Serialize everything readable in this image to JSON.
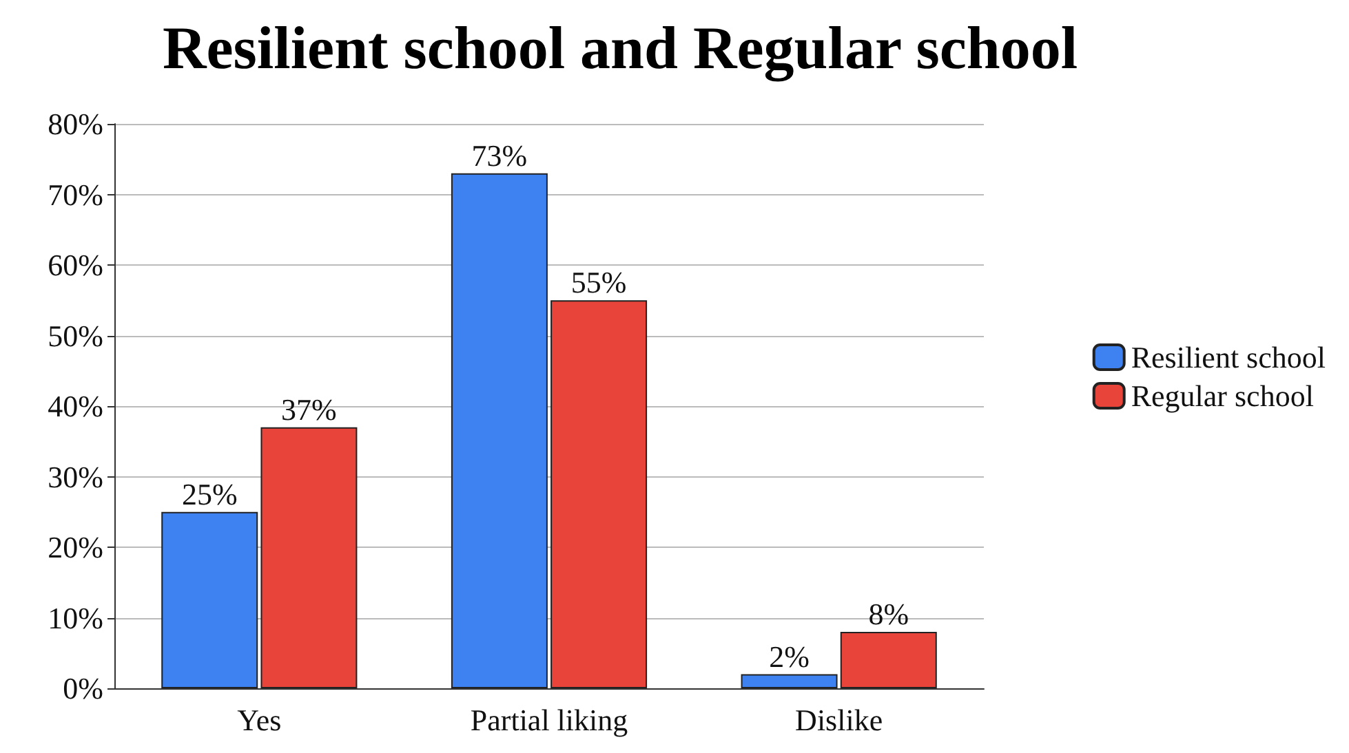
{
  "chart_data": {
    "type": "bar",
    "title": "Resilient school and Regular school",
    "categories": [
      "Yes",
      "Partial liking",
      "Dislike"
    ],
    "series": [
      {
        "name": "Resilient school",
        "color": "#3d82f0",
        "values": [
          25,
          73,
          2
        ],
        "value_labels": [
          "25%",
          "73%",
          "2%"
        ]
      },
      {
        "name": "Regular school",
        "color": "#e8443a",
        "values": [
          37,
          55,
          8
        ],
        "value_labels": [
          "37%",
          "55%",
          "8%"
        ]
      }
    ],
    "ylim": [
      0,
      80
    ],
    "yticks": [
      {
        "value": 0,
        "label": "0%"
      },
      {
        "value": 10,
        "label": "10%"
      },
      {
        "value": 20,
        "label": "20%"
      },
      {
        "value": 30,
        "label": "30%"
      },
      {
        "value": 40,
        "label": "40%"
      },
      {
        "value": 50,
        "label": "50%"
      },
      {
        "value": 60,
        "label": "60%"
      },
      {
        "value": 70,
        "label": "70%"
      },
      {
        "value": 80,
        "label": "80%"
      }
    ],
    "grid": "y",
    "legend": "right"
  }
}
